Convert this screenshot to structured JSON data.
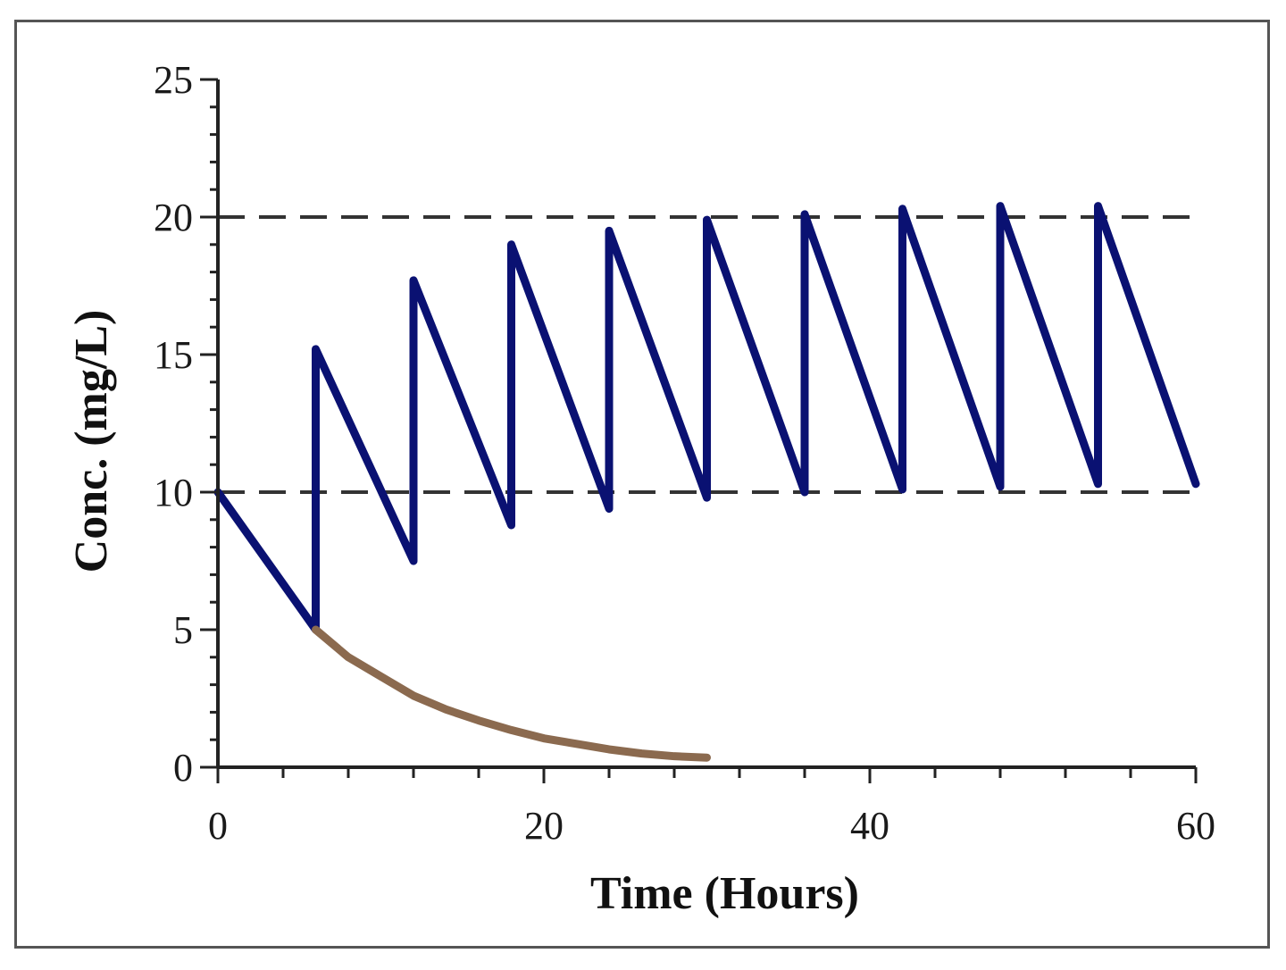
{
  "chart_data": {
    "type": "line",
    "title": "",
    "xlabel": "Time (Hours)",
    "ylabel": "Conc. (mg/L)",
    "xlim": [
      0,
      60
    ],
    "ylim": [
      0,
      25
    ],
    "x_ticks": [
      0,
      20,
      40,
      60
    ],
    "y_ticks": [
      0,
      5,
      10,
      15,
      20,
      25
    ],
    "x_tick_labels": [
      "0",
      "20",
      "40",
      "60"
    ],
    "y_tick_labels": [
      "0",
      "5",
      "10",
      "15",
      "20",
      "25"
    ],
    "grid": false,
    "legend": "none",
    "reference_lines": [
      {
        "axis": "y",
        "value": 20,
        "style": "dashed",
        "color": "#333333"
      },
      {
        "axis": "y",
        "value": 10,
        "style": "dashed",
        "color": "#333333"
      }
    ],
    "series": [
      {
        "color": "#0a1172",
        "x": [
          0,
          6,
          6,
          12,
          12,
          18,
          18,
          24,
          24,
          30,
          30,
          36,
          36,
          42,
          42,
          48,
          48,
          54,
          54,
          60
        ],
        "y": [
          10,
          5,
          15.2,
          7.5,
          17.7,
          8.8,
          19.0,
          9.4,
          19.5,
          9.8,
          19.9,
          10.0,
          20.1,
          10.1,
          20.3,
          10.2,
          20.4,
          10.3,
          20.4,
          10.3
        ]
      },
      {
        "color": "#8b6a4f",
        "x": [
          6,
          8,
          10,
          12,
          14,
          16,
          18,
          20,
          22,
          24,
          26,
          28,
          30
        ],
        "y": [
          5,
          4.0,
          3.3,
          2.6,
          2.1,
          1.7,
          1.35,
          1.05,
          0.85,
          0.65,
          0.5,
          0.4,
          0.35
        ]
      }
    ]
  }
}
